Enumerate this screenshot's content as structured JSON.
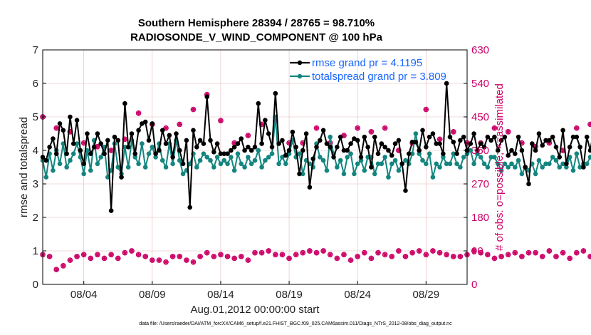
{
  "title_line1": "Southern Hemisphere 28394 / 28765 = 98.710%",
  "title_line2": "RADIOSONDE_V_WIND_COMPONENT @ 100 hPa",
  "footer": "data file: /Users/raeder/DAI/ATM_forcXX/CAM6_setup/f.e21.FHIST_BGC.f09_025.CAM6assim.011/Diags_NTrS_2012-08/obs_diag_output.nc",
  "colors": {
    "rmse": "#000000",
    "spread": "#14857f",
    "obs": "#cc0066",
    "legend_text": "#1a66ff",
    "grid": "#e6b8b8"
  },
  "chart_data": {
    "type": "line",
    "xlabel": "Aug.01,2012 00:00:00 start",
    "ylabel_left": "rmse and totalspread",
    "ylabel_right": "# of obs: o=possible; ×=assimilated",
    "ylim_left": [
      0,
      7
    ],
    "ylim_right": [
      0,
      630
    ],
    "xlim_days": [
      1,
      32
    ],
    "x_start": "2012-08-01",
    "step_days": 0.25,
    "yticks_left": [
      "0",
      "1",
      "2",
      "3",
      "4",
      "5",
      "6",
      "7"
    ],
    "yticks_right": [
      "0",
      "90",
      "180",
      "270",
      "360",
      "450",
      "540",
      "630"
    ],
    "xticks": [
      {
        "day": 4,
        "label": "08/04"
      },
      {
        "day": 9,
        "label": "08/09"
      },
      {
        "day": 14,
        "label": "08/14"
      },
      {
        "day": 19,
        "label": "08/19"
      },
      {
        "day": 24,
        "label": "08/24"
      },
      {
        "day": 29,
        "label": "08/29"
      }
    ],
    "grid": true,
    "legend_position": "top-right",
    "legend": [
      {
        "name": "rmse grand pr = 4.1195",
        "series": "rmse"
      },
      {
        "name": "totalspread grand pr = 3.809",
        "series": "spread"
      }
    ],
    "series": [
      {
        "name": "rmse",
        "values": [
          3.8,
          3.7,
          4.1,
          4.35,
          3.9,
          4.8,
          4.6,
          3.9,
          5.0,
          4.2,
          4.9,
          4.0,
          3.6,
          4.5,
          3.9,
          4.1,
          4.5,
          4.2,
          3.9,
          4.3,
          2.2,
          4.4,
          4.3,
          3.2,
          5.4,
          4.1,
          4.5,
          3.9,
          4.6,
          4.8,
          4.85,
          4.3,
          4.8,
          3.9,
          4.0,
          4.6,
          4.2,
          4.45,
          3.8,
          4.5,
          4.0,
          3.6,
          4.3,
          2.3,
          4.6,
          4.1,
          4.3,
          4.2,
          5.6,
          4.3,
          3.95,
          4.2,
          3.9,
          3.9,
          3.9,
          4.0,
          4.1,
          4.2,
          4.35,
          4.0,
          4.1,
          4.0,
          4.1,
          5.4,
          4.2,
          4.9,
          4.5,
          4.1,
          5.7,
          4.2,
          4.3,
          3.85,
          4.0,
          4.55,
          4.1,
          3.3,
          4.0,
          4.5,
          2.9,
          3.75,
          4.1,
          4.3,
          4.6,
          4.2,
          4.1,
          3.8,
          4.1,
          4.4,
          4.0,
          4.0,
          4.2,
          4.35,
          4.3,
          3.8,
          4.4,
          4.1,
          3.5,
          4.4,
          3.9,
          4.2,
          4.1,
          4.0,
          3.85,
          4.2,
          4.3,
          3.6,
          2.8,
          3.9,
          4.25,
          4.25,
          4.0,
          4.6,
          4.1,
          4.4,
          4.5,
          4.2,
          4.2,
          3.9,
          6.0,
          4.4,
          4.25,
          3.9,
          4.3,
          4.4,
          4.0,
          4.2,
          4.5,
          4.0,
          4.2,
          4.1,
          4.4,
          4.3,
          4.4,
          4.0,
          4.3,
          4.4,
          3.85,
          4.0,
          3.9,
          4.4,
          4.0,
          3.5,
          3.0,
          4.2,
          4.0,
          4.5,
          4.15,
          4.3,
          4.3,
          4.4,
          4.1,
          3.8,
          4.6,
          3.6,
          4.1,
          4.4,
          4.4,
          4.1,
          3.5,
          4.4,
          4.0,
          4.6,
          4.2,
          4.1,
          4.4,
          4.2,
          3.9,
          3.6,
          4.2,
          4.0,
          4.6,
          4.2,
          4.0,
          5.6,
          3.8,
          4.2,
          4.1,
          4.5,
          4.1,
          4.2,
          3.9,
          3.85,
          3.6,
          4.0,
          3.6,
          4.2,
          4.3,
          3.8,
          4.4,
          4.05,
          4.0,
          3.9,
          4.1,
          4.4,
          3.5,
          4.0,
          3.5,
          3.5
        ]
      },
      {
        "name": "totalspread",
        "values": [
          3.7,
          3.2,
          3.9,
          3.4,
          4.0,
          3.6,
          4.2,
          3.5,
          3.7,
          3.9,
          4.2,
          3.8,
          3.3,
          4.0,
          3.4,
          4.3,
          3.6,
          3.8,
          4.1,
          3.2,
          3.4,
          4.2,
          3.5,
          3.3,
          4.1,
          3.5,
          4.3,
          3.8,
          3.6,
          4.2,
          3.5,
          3.9,
          4.1,
          3.8,
          4.2,
          3.7,
          3.5,
          4.2,
          3.6,
          4.3,
          3.7,
          3.3,
          3.4,
          3.6,
          3.9,
          3.5,
          3.7,
          3.9,
          3.8,
          3.7,
          3.5,
          3.8,
          3.6,
          3.7,
          3.6,
          3.8,
          3.4,
          3.9,
          3.6,
          3.5,
          3.8,
          3.6,
          3.7,
          4.0,
          3.5,
          3.7,
          3.8,
          3.9,
          5.0,
          3.6,
          3.8,
          3.6,
          3.9,
          4.3,
          3.8,
          3.9,
          3.3,
          3.7,
          3.6,
          3.5,
          4.2,
          3.8,
          3.7,
          3.4,
          4.4,
          3.9,
          3.5,
          3.7,
          3.3,
          3.8,
          3.9,
          3.3,
          3.6,
          3.7,
          3.4,
          3.8,
          3.8,
          3.3,
          3.6,
          3.6,
          3.8,
          3.2,
          3.6,
          3.7,
          3.4,
          3.6,
          3.7,
          3.6,
          3.9,
          4.5,
          3.9,
          3.7,
          3.6,
          3.9,
          3.2,
          3.6,
          3.5,
          3.8,
          3.6,
          3.6,
          3.9,
          3.6,
          3.5,
          3.8,
          3.9,
          4.0,
          3.6,
          3.9,
          3.8,
          3.6,
          3.5,
          3.8,
          3.8,
          3.6,
          3.4,
          3.6,
          3.5,
          3.6,
          3.5,
          3.7,
          3.3,
          3.5,
          3.4,
          3.6,
          3.3,
          3.7,
          3.5,
          3.6,
          3.6,
          3.8,
          3.7,
          3.5,
          3.6,
          3.5,
          3.8,
          3.4,
          3.9,
          3.5,
          3.6,
          3.6,
          3.8,
          3.6,
          3.7,
          3.9,
          3.6,
          3.9,
          3.4,
          3.6,
          3.8,
          3.9,
          3.6,
          3.6,
          3.8,
          4.0,
          3.9,
          4.1,
          3.5,
          3.6,
          3.9,
          3.8,
          3.8,
          3.7,
          3.4,
          3.8,
          3.7,
          3.8,
          3.6,
          3.5,
          3.6,
          3.8,
          3.5,
          3.6,
          3.1,
          3.7,
          3.4,
          3.4
        ]
      },
      {
        "name": "obs_possible",
        "values": [
          80,
          15,
          75,
          10,
          40,
          15,
          50,
          15,
          65,
          20,
          75,
          20,
          80,
          30,
          70,
          20,
          80,
          25,
          70,
          20,
          80,
          20,
          70,
          30,
          85,
          30,
          90,
          20,
          80,
          30,
          75,
          15,
          65,
          25,
          65,
          20,
          60,
          20,
          75,
          25,
          75,
          20,
          65,
          30,
          60,
          20,
          75,
          25,
          85,
          20,
          75,
          25,
          80,
          20,
          75,
          10,
          70,
          10,
          75,
          20,
          65,
          20,
          85,
          25,
          85,
          20,
          90,
          20,
          80,
          30,
          80,
          10,
          70,
          20,
          80,
          15,
          85,
          20,
          90,
          25,
          85,
          20,
          90,
          20,
          80,
          25,
          70,
          20,
          80,
          20,
          65,
          20,
          75,
          20,
          85,
          15,
          70,
          20,
          85,
          25,
          80,
          25,
          75,
          20,
          90,
          20,
          75,
          20,
          85,
          25,
          90,
          15,
          80,
          25,
          90,
          20,
          85,
          20,
          80,
          25,
          75,
          15,
          75,
          20,
          80,
          25,
          90,
          15,
          85,
          20,
          80,
          25,
          70,
          20,
          75,
          20,
          80,
          25,
          85,
          20,
          75,
          20,
          85,
          30,
          85,
          25,
          75,
          20,
          90,
          25,
          75,
          20,
          85,
          20,
          70,
          25,
          85,
          30,
          90,
          20,
          75,
          20,
          80,
          25,
          90,
          20,
          80,
          20,
          75,
          25,
          85,
          15,
          75,
          20,
          85,
          30,
          85,
          20,
          70,
          25,
          90,
          20,
          90,
          25,
          80,
          20,
          75,
          25,
          85,
          30,
          80,
          20,
          70,
          25,
          90,
          20,
          85,
          20,
          70,
          15,
          95,
          25,
          80,
          15,
          90,
          10,
          95,
          25,
          85,
          20
        ]
      },
      {
        "name": "obs_assimilated",
        "values": [
          450,
          340,
          365,
          350,
          420,
          345,
          430,
          380,
          410,
          360,
          390,
          420,
          380,
          440,
          400,
          390,
          370,
          380,
          390,
          410,
          360,
          400,
          420,
          370,
          390,
          410,
          380,
          440,
          460,
          400,
          390,
          420,
          430,
          490,
          500,
          410,
          420,
          440,
          400,
          470,
          430,
          440,
          460,
          370,
          470,
          400,
          490,
          440,
          510,
          480,
          420,
          430,
          440,
          420,
          370,
          360,
          380,
          400,
          410,
          380,
          400,
          420,
          380,
          470,
          430,
          380,
          420,
          470,
          440,
          450,
          420,
          410,
          380,
          400,
          420,
          390,
          380,
          420,
          440,
          470,
          420,
          400,
          390,
          360,
          380,
          400,
          430,
          420,
          400,
          410,
          370,
          380,
          420,
          400,
          380,
          400,
          410,
          440,
          460,
          380,
          420,
          400,
          380,
          420,
          360,
          420,
          410,
          400,
          380,
          400,
          420,
          380,
          470,
          430,
          520,
          400,
          390,
          420,
          460,
          390,
          410,
          440,
          420,
          400,
          380,
          390,
          410,
          370,
          380,
          460,
          430,
          400,
          420,
          390,
          380,
          400,
          410,
          380,
          370,
          410,
          380,
          400,
          420,
          390,
          370,
          380,
          400,
          390,
          380,
          420,
          410,
          390,
          360,
          380,
          400,
          450,
          420,
          430,
          380,
          400,
          430,
          390,
          410,
          420,
          400,
          380,
          420,
          370,
          410,
          390,
          400,
          380,
          420,
          390,
          400,
          360,
          420,
          410,
          390,
          380,
          400,
          370,
          380,
          420,
          410,
          390,
          370,
          430,
          480,
          460,
          370,
          380,
          410,
          370,
          400,
          480,
          360,
          380,
          400,
          430,
          420,
          500,
          380,
          400,
          390,
          310
        ]
      }
    ]
  }
}
